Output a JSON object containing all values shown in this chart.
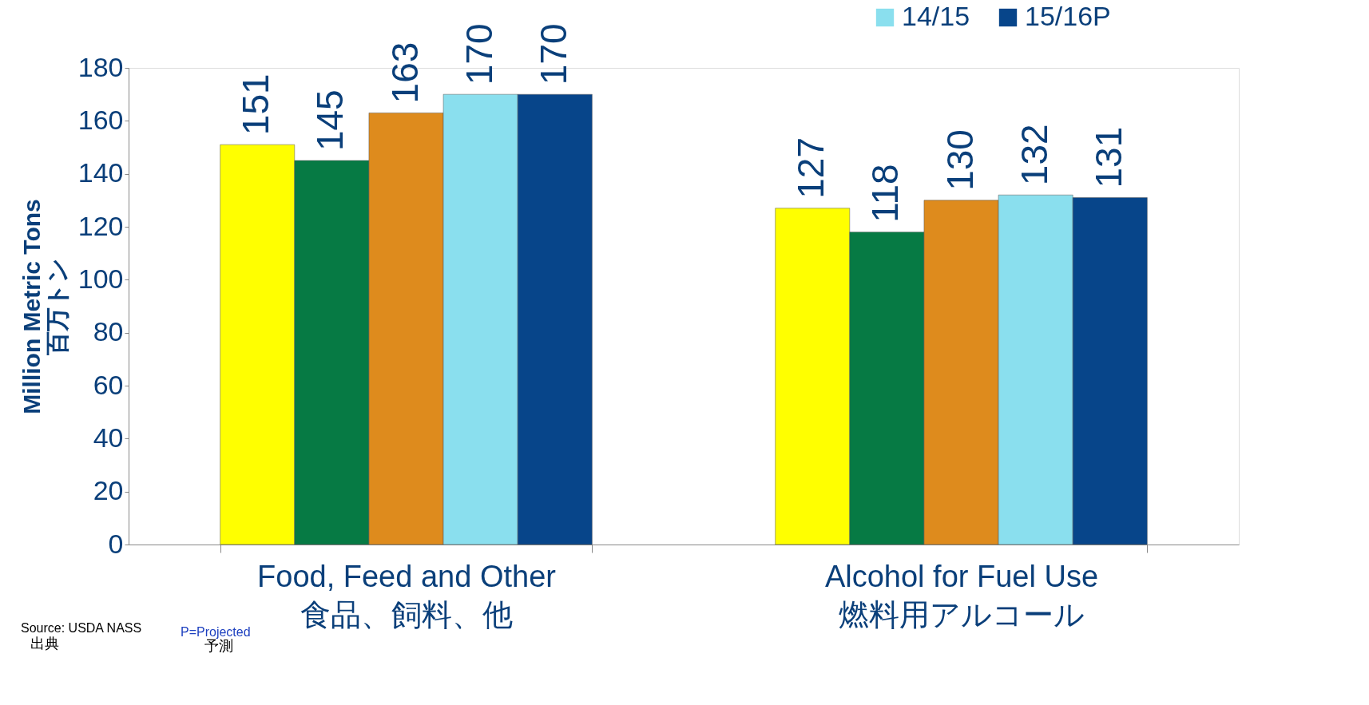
{
  "chart_data": {
    "type": "bar",
    "categories": [
      "Food, Feed and Other\n食品、飼料、他",
      "Alcohol for Fuel Use\n燃料用アルコール"
    ],
    "ylabel": "Million Metric Tons\n百万トン",
    "ylim": [
      0,
      180
    ],
    "yticks": [
      0,
      20,
      40,
      60,
      80,
      100,
      120,
      140,
      160,
      180
    ],
    "grid": false,
    "legend": "top right",
    "data_labels": true,
    "series": [
      {
        "color": "#ffff00",
        "values": [
          151,
          127
        ]
      },
      {
        "color": "#067a44",
        "values": [
          145,
          118
        ]
      },
      {
        "color": "#de8b1d",
        "values": [
          163,
          130
        ]
      },
      {
        "name": "14/15",
        "color": "#8adfee",
        "values": [
          170,
          132
        ]
      },
      {
        "name": "15/16P",
        "color": "#07458a",
        "values": [
          170,
          131
        ]
      }
    ],
    "annotations": [
      "Source: USDA NASS",
      "出典",
      "P=Projected",
      "予測"
    ]
  }
}
